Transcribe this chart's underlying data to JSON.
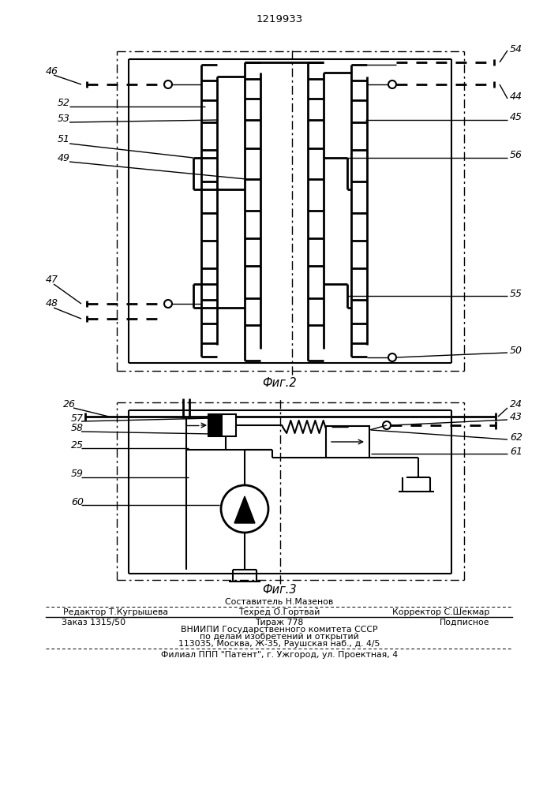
{
  "title": "1219933",
  "fig2_label": "Фиг.2",
  "fig3_label": "Фиг.3",
  "footer_line1_center": "Составитель Н.Мазенов",
  "footer_line2_left": "Редактор Т.Кугрышева",
  "footer_line2_center": "Техред О.Гортвай",
  "footer_line2_right": "Корректор С.Шекмар",
  "footer_line3_left": "Заказ 1315/50",
  "footer_line3_center": "Тираж 778",
  "footer_line3_right": "Подписное",
  "footer_line4": "ВНИИПИ Государственного комитета СССР",
  "footer_line5": "по делам изобретений и открытий",
  "footer_line6": "113035, Москва, Ж-35, Раушская наб., д. 4/5",
  "footer_line7": "Филиал ППП \"Патент\", г. Ужгород, ул. Проектная, 4",
  "bg_color": "#ffffff",
  "line_color": "#000000"
}
